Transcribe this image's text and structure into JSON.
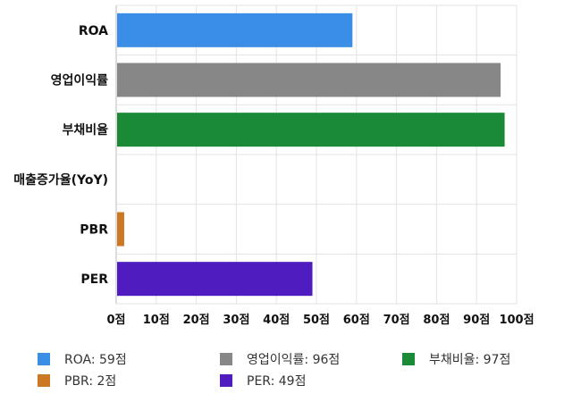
{
  "chart_data": {
    "type": "bar",
    "orientation": "horizontal",
    "categories": [
      "ROA",
      "영업이익률",
      "부채비율",
      "매출증가율(YoY)",
      "PBR",
      "PER"
    ],
    "values": [
      59,
      96,
      97,
      0,
      2,
      49
    ],
    "colors": [
      "#3a8ee6",
      "#878787",
      "#1a8a36",
      "#cccccc",
      "#cc7722",
      "#4f1cc0"
    ],
    "xlim": [
      0,
      100
    ],
    "x_ticks": [
      0,
      10,
      20,
      30,
      40,
      50,
      60,
      70,
      80,
      90,
      100
    ],
    "tick_suffix": "점",
    "grid": true,
    "legend_position": "bottom"
  },
  "legend": [
    {
      "label": "ROA: 59점",
      "color": "#3a8ee6"
    },
    {
      "label": "영업이익률: 96점",
      "color": "#878787"
    },
    {
      "label": "부채비율: 97점",
      "color": "#1a8a36"
    },
    {
      "label": "PBR: 2점",
      "color": "#cc7722"
    },
    {
      "label": "PER: 49점",
      "color": "#4f1cc0"
    }
  ]
}
